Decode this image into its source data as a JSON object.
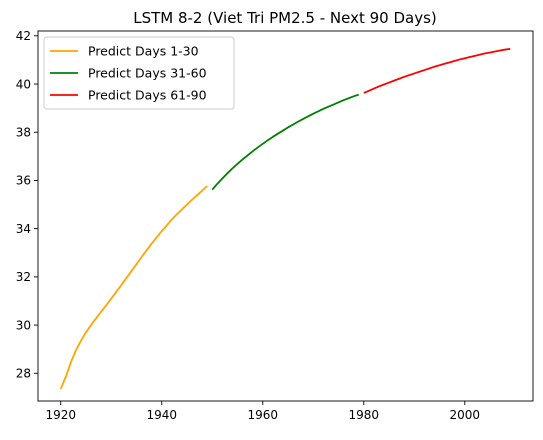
{
  "chart_data": {
    "type": "line",
    "title": "LSTM 8-2 (Viet Tri PM2.5 - Next 90 Days)",
    "xlabel": "",
    "ylabel": "",
    "xlim": [
      1915.5,
      2013.5
    ],
    "ylim": [
      26.85,
      42.2
    ],
    "xticks": [
      1920,
      1940,
      1960,
      1980,
      2000
    ],
    "yticks": [
      28,
      30,
      32,
      34,
      36,
      38,
      40,
      42
    ],
    "grid": false,
    "legend_position": "top-left",
    "series": [
      {
        "name": "Predict Days 1-30",
        "color": "#FFA500",
        "x": [
          1920,
          1921,
          1922,
          1923,
          1924,
          1925,
          1926,
          1927,
          1928,
          1929,
          1930,
          1931,
          1932,
          1933,
          1934,
          1935,
          1936,
          1937,
          1938,
          1939,
          1940,
          1941,
          1942,
          1943,
          1944,
          1945,
          1946,
          1947,
          1948,
          1949
        ],
        "y": [
          27.35,
          27.85,
          28.45,
          28.95,
          29.35,
          29.7,
          30.0,
          30.28,
          30.55,
          30.82,
          31.1,
          31.38,
          31.66,
          31.95,
          32.24,
          32.53,
          32.82,
          33.1,
          33.38,
          33.64,
          33.9,
          34.14,
          34.38,
          34.6,
          34.8,
          35.0,
          35.2,
          35.39,
          35.58,
          35.77
        ]
      },
      {
        "name": "Predict Days 31-60",
        "color": "#008000",
        "x": [
          1950,
          1951,
          1952,
          1953,
          1954,
          1955,
          1956,
          1957,
          1958,
          1959,
          1960,
          1961,
          1962,
          1963,
          1964,
          1965,
          1966,
          1967,
          1968,
          1969,
          1970,
          1971,
          1972,
          1973,
          1974,
          1975,
          1976,
          1977,
          1978,
          1979
        ],
        "y": [
          35.62,
          35.86,
          36.08,
          36.3,
          36.5,
          36.69,
          36.87,
          37.04,
          37.21,
          37.37,
          37.52,
          37.67,
          37.81,
          37.94,
          38.07,
          38.2,
          38.32,
          38.44,
          38.55,
          38.66,
          38.77,
          38.87,
          38.97,
          39.06,
          39.15,
          39.24,
          39.33,
          39.41,
          39.49,
          39.56
        ]
      },
      {
        "name": "Predict Days 61-90",
        "color": "#FF0000",
        "x": [
          1980,
          1981,
          1982,
          1983,
          1984,
          1985,
          1986,
          1987,
          1988,
          1989,
          1990,
          1991,
          1992,
          1993,
          1994,
          1995,
          1996,
          1997,
          1998,
          1999,
          2000,
          2001,
          2002,
          2003,
          2004,
          2005,
          2006,
          2007,
          2008,
          2009
        ],
        "y": [
          39.63,
          39.72,
          39.81,
          39.9,
          39.98,
          40.06,
          40.14,
          40.22,
          40.3,
          40.37,
          40.44,
          40.51,
          40.58,
          40.65,
          40.72,
          40.78,
          40.84,
          40.9,
          40.96,
          41.02,
          41.07,
          41.12,
          41.17,
          41.22,
          41.27,
          41.31,
          41.35,
          41.39,
          41.43,
          41.46
        ]
      }
    ]
  }
}
